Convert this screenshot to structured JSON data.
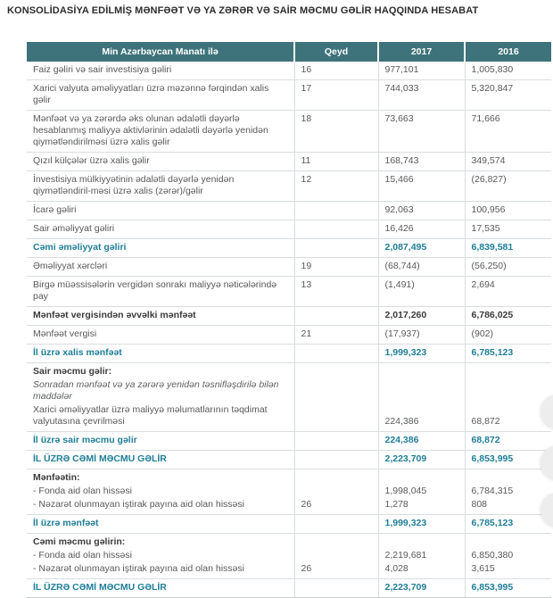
{
  "title": "KONSOLİDASİYA EDİLMİŞ MƏNFƏƏT VƏ YA ZƏRƏR VƏ SAİR MƏCMU GƏLİR HAQQINDA HESABAT",
  "colors": {
    "header_bg": "#3e737b",
    "accent_teal": "#1f7e98",
    "border": "#d9dde0",
    "text": "#58595b",
    "text_bold": "#3b3b3b"
  },
  "table": {
    "columns": [
      {
        "label": "Min Azərbaycan Manatı ilə"
      },
      {
        "label": "Qeyd"
      },
      {
        "label": "2017"
      },
      {
        "label": "2016"
      }
    ],
    "rows": [
      {
        "kind": "item",
        "rule": true,
        "label": "Faiz gəliri və sair investisiya gəliri",
        "qeyd": "16",
        "y2017": "977,101",
        "y2016": "1,005,830"
      },
      {
        "kind": "item",
        "rule": true,
        "label": "Xarici valyuta əməliyyatları üzrə məzənnə fərqindən xalis gəlir",
        "qeyd": "17",
        "y2017": "744,033",
        "y2016": "5,320,847"
      },
      {
        "kind": "item",
        "rule": true,
        "label": "Mənfəət və ya zərərdə əks olunan ədalətli dəyərlə hesablanmış maliyyə aktivlərinin ədalətli dəyərlə yenidən qiymətləndirilməsi üzrə xalis gəlir",
        "qeyd": "18",
        "y2017": "73,663",
        "y2016": "71,666"
      },
      {
        "kind": "item",
        "rule": true,
        "label": "Qızıl külçələr üzrə xalis gəlir",
        "qeyd": "11",
        "y2017": "168,743",
        "y2016": "349,574"
      },
      {
        "kind": "item",
        "rule": true,
        "label": "İnvestisiya mülkiyyətinin ədalətli dəyərlə yenidən qiymətləndiril-məsi üzrə xalis (zərər)/gəlir",
        "qeyd": "12",
        "y2017": "15,466",
        "y2016": "(26,827)"
      },
      {
        "kind": "item",
        "rule": true,
        "label": "İcarə gəliri",
        "qeyd": "",
        "y2017": "92,063",
        "y2016": "100,956"
      },
      {
        "kind": "item",
        "rule": true,
        "label": "Sair əməliyyat gəliri",
        "qeyd": "",
        "y2017": "16,426",
        "y2016": "17,535"
      },
      {
        "kind": "teal",
        "rule": true,
        "label": "Cəmi əməliyyat gəliri",
        "qeyd": "",
        "y2017": "2,087,495",
        "y2016": "6,839,581"
      },
      {
        "kind": "item",
        "rule": true,
        "label": "Əməliyyat xərcləri",
        "qeyd": "19",
        "y2017": "(68,744)",
        "y2016": "(56,250)"
      },
      {
        "kind": "item",
        "rule": true,
        "label": "Birgə müəssisələrin vergidən sonrakı maliyyə nəticələrində pay",
        "qeyd": "13",
        "y2017": "(1,491)",
        "y2016": "2,694"
      },
      {
        "kind": "boldrow",
        "rule": true,
        "label": "Mənfəət vergisindən əvvəlki mənfəət",
        "qeyd": "",
        "y2017": "2,017,260",
        "y2016": "6,786,025"
      },
      {
        "kind": "item",
        "rule": true,
        "label": "Mənfəət vergisi",
        "qeyd": "21",
        "y2017": "(17,937)",
        "y2016": "(902)"
      },
      {
        "kind": "teal",
        "rule": true,
        "label": "İl üzrə xalis mənfəət",
        "qeyd": "",
        "y2017": "1,999,323",
        "y2016": "6,785,123"
      },
      {
        "kind": "section",
        "rule": false,
        "label": "Sair məcmu gəlir:",
        "qeyd": "",
        "y2017": "",
        "y2016": ""
      },
      {
        "kind": "note",
        "rule": false,
        "label": "Sonradan mənfəət və ya zərərə yenidən təsnifləşdirilə bilən maddələr",
        "qeyd": "",
        "y2017": "",
        "y2016": ""
      },
      {
        "kind": "item",
        "rule": true,
        "valign": "bottom",
        "label": "Xarici əməliyyatlar üzrə maliyyə məlumatlarının təqdimat valyutasına çevrilməsi",
        "qeyd": "",
        "y2017": "224,386",
        "y2016": "68,872"
      },
      {
        "kind": "teal",
        "rule": true,
        "label": "İl üzrə sair məcmu gəlir",
        "qeyd": "",
        "y2017": "224,386",
        "y2016": "68,872"
      },
      {
        "kind": "teal",
        "rule": true,
        "label": "İL ÜZRƏ CƏMİ MƏCMU GƏLİR",
        "qeyd": "",
        "y2017": "2,223,709",
        "y2016": "6,853,995"
      },
      {
        "kind": "section",
        "rule": false,
        "label": "Mənfəətin:",
        "qeyd": "",
        "y2017": "",
        "y2016": ""
      },
      {
        "kind": "item",
        "rule": false,
        "label": "- Fonda aid olan hissəsi",
        "qeyd": "",
        "y2017": "1,998,045",
        "y2016": "6,784,315"
      },
      {
        "kind": "item",
        "rule": true,
        "label": "- Nəzarət olunmayan iştirak payına aid olan hissəsi",
        "qeyd": "26",
        "y2017": "1,278",
        "y2016": "808"
      },
      {
        "kind": "teal",
        "rule": true,
        "label": "İl üzrə mənfəət",
        "qeyd": "",
        "y2017": "1,999,323",
        "y2016": "6,785,123"
      },
      {
        "kind": "section",
        "rule": false,
        "label": "Cəmi məcmu gəlirin:",
        "qeyd": "",
        "y2017": "",
        "y2016": ""
      },
      {
        "kind": "item",
        "rule": false,
        "label": "- Fonda aid olan hissəsi",
        "qeyd": "",
        "y2017": "2,219,681",
        "y2016": "6,850,380"
      },
      {
        "kind": "item",
        "rule": true,
        "label": "- Nəzarət olunmayan iştirak payına aid olan hissəsi",
        "qeyd": "26",
        "y2017": "4,028",
        "y2016": "3,615"
      },
      {
        "kind": "teal",
        "rule": true,
        "label": "İL ÜZRƏ CƏMİ MƏCMU GƏLİR",
        "qeyd": "",
        "y2017": "2,223,709",
        "y2016": "6,853,995"
      }
    ]
  }
}
